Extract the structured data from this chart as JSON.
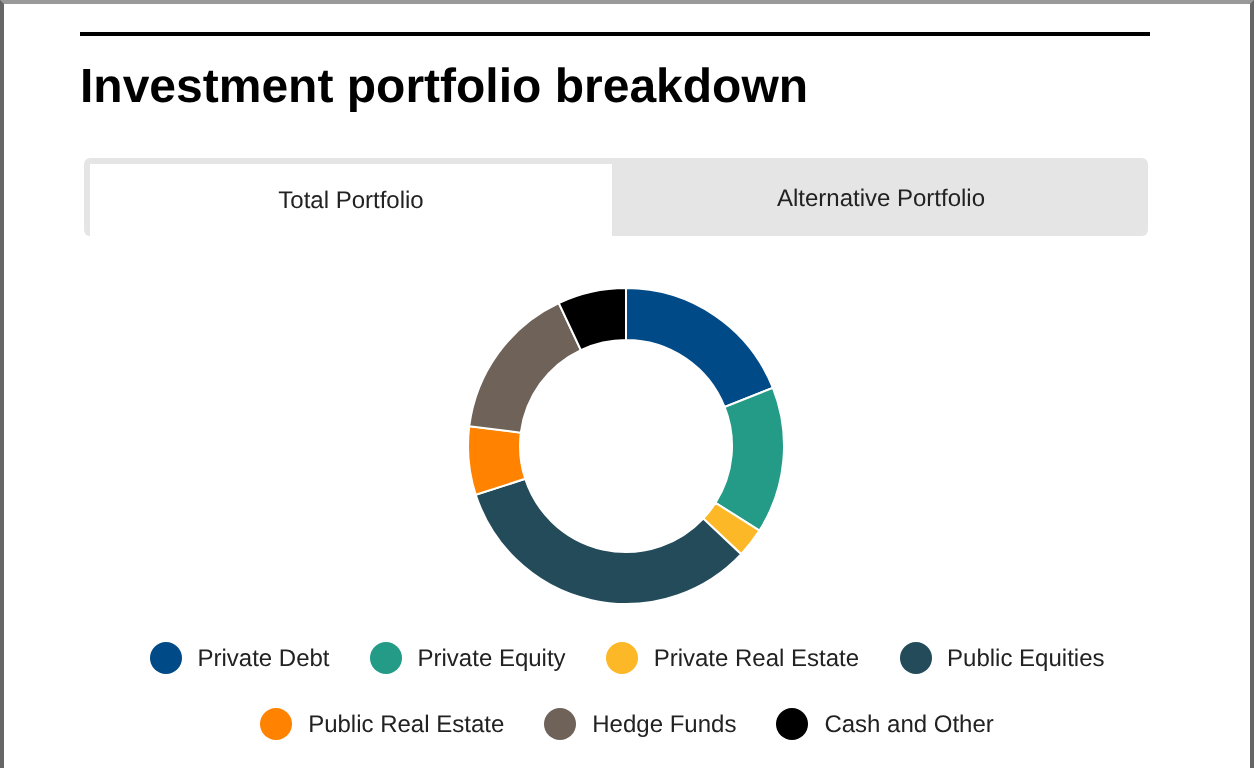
{
  "chart_data": {
    "type": "donut",
    "title": "Investment portfolio breakdown",
    "annotations": [
      "Total Portfolio",
      "Alternative Portfolio"
    ],
    "categories": [
      "Private Debt",
      "Private Equity",
      "Private Real Estate",
      "Public Equities",
      "Public Real Estate",
      "Hedge Funds",
      "Cash and Other"
    ],
    "values": [
      19,
      15,
      3,
      33,
      7,
      16,
      7
    ],
    "colors": [
      "#004a87",
      "#239b87",
      "#fdb827",
      "#234b5a",
      "#ff8200",
      "#6e6259",
      "#000000"
    ],
    "legend": "bottom"
  }
}
